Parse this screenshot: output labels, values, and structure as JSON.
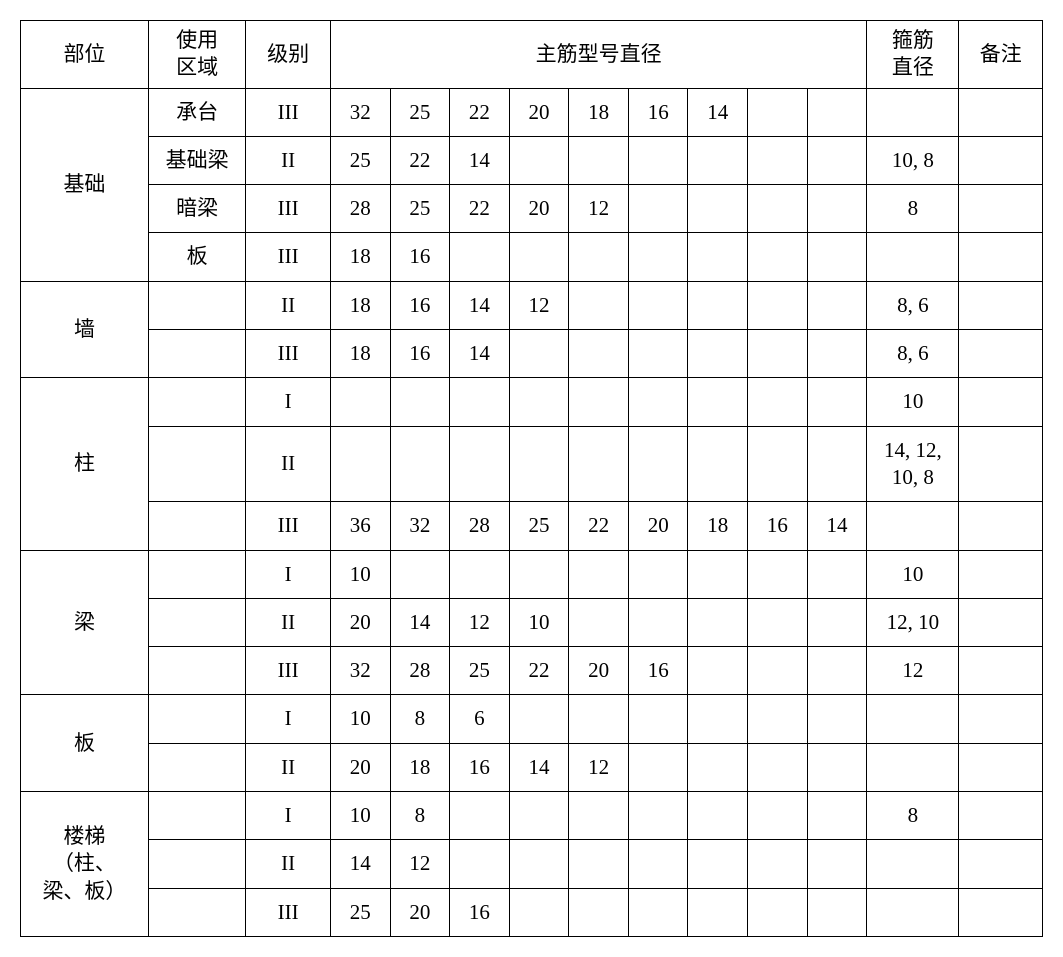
{
  "headers": {
    "part": "部位",
    "area": "使用\n区域",
    "level": "级别",
    "main_rebar": "主筋型号直径",
    "stirrup": "箍筋\n直径",
    "remark": "备注"
  },
  "groups": [
    {
      "part": "基础",
      "rows": [
        {
          "area": "承台",
          "level": "III",
          "rebars": [
            "32",
            "25",
            "22",
            "20",
            "18",
            "16",
            "14",
            "",
            ""
          ],
          "stirrup": "",
          "remark": ""
        },
        {
          "area": "基础梁",
          "level": "II",
          "rebars": [
            "25",
            "22",
            "14",
            "",
            "",
            "",
            "",
            "",
            ""
          ],
          "stirrup": "10, 8",
          "remark": ""
        },
        {
          "area": "暗梁",
          "level": "III",
          "rebars": [
            "28",
            "25",
            "22",
            "20",
            "12",
            "",
            "",
            "",
            ""
          ],
          "stirrup": "8",
          "remark": ""
        },
        {
          "area": "板",
          "level": "III",
          "rebars": [
            "18",
            "16",
            "",
            "",
            "",
            "",
            "",
            "",
            ""
          ],
          "stirrup": "",
          "remark": ""
        }
      ]
    },
    {
      "part": "墙",
      "rows": [
        {
          "area": "",
          "level": "II",
          "rebars": [
            "18",
            "16",
            "14",
            "12",
            "",
            "",
            "",
            "",
            ""
          ],
          "stirrup": "8, 6",
          "remark": ""
        },
        {
          "area": "",
          "level": "III",
          "rebars": [
            "18",
            "16",
            "14",
            "",
            "",
            "",
            "",
            "",
            ""
          ],
          "stirrup": "8, 6",
          "remark": ""
        }
      ]
    },
    {
      "part": "柱",
      "rows": [
        {
          "area": "",
          "level": "I",
          "rebars": [
            "",
            "",
            "",
            "",
            "",
            "",
            "",
            "",
            ""
          ],
          "stirrup": "10",
          "remark": ""
        },
        {
          "area": "",
          "level": "II",
          "rebars": [
            "",
            "",
            "",
            "",
            "",
            "",
            "",
            "",
            ""
          ],
          "stirrup": "14, 12,\n10, 8",
          "remark": ""
        },
        {
          "area": "",
          "level": "III",
          "rebars": [
            "36",
            "32",
            "28",
            "25",
            "22",
            "20",
            "18",
            "16",
            "14"
          ],
          "stirrup": "",
          "remark": ""
        }
      ]
    },
    {
      "part": "梁",
      "rows": [
        {
          "area": "",
          "level": "I",
          "rebars": [
            "10",
            "",
            "",
            "",
            "",
            "",
            "",
            "",
            ""
          ],
          "stirrup": "10",
          "remark": ""
        },
        {
          "area": "",
          "level": "II",
          "rebars": [
            "20",
            "14",
            "12",
            "10",
            "",
            "",
            "",
            "",
            ""
          ],
          "stirrup": "12, 10",
          "remark": ""
        },
        {
          "area": "",
          "level": "III",
          "rebars": [
            "32",
            "28",
            "25",
            "22",
            "20",
            "16",
            "",
            "",
            ""
          ],
          "stirrup": "12",
          "remark": ""
        }
      ]
    },
    {
      "part": "板",
      "rows": [
        {
          "area": "",
          "level": "I",
          "rebars": [
            "10",
            "8",
            "6",
            "",
            "",
            "",
            "",
            "",
            ""
          ],
          "stirrup": "",
          "remark": ""
        },
        {
          "area": "",
          "level": "II",
          "rebars": [
            "20",
            "18",
            "16",
            "14",
            "12",
            "",
            "",
            "",
            ""
          ],
          "stirrup": "",
          "remark": ""
        }
      ]
    },
    {
      "part": "楼梯\n（柱、\n梁、板）",
      "rows": [
        {
          "area": "",
          "level": "I",
          "rebars": [
            "10",
            "8",
            "",
            "",
            "",
            "",
            "",
            "",
            ""
          ],
          "stirrup": "8",
          "remark": ""
        },
        {
          "area": "",
          "level": "II",
          "rebars": [
            "14",
            "12",
            "",
            "",
            "",
            "",
            "",
            "",
            ""
          ],
          "stirrup": "",
          "remark": ""
        },
        {
          "area": "",
          "level": "III",
          "rebars": [
            "25",
            "20",
            "16",
            "",
            "",
            "",
            "",
            "",
            ""
          ],
          "stirrup": "",
          "remark": ""
        }
      ]
    }
  ],
  "style": {
    "type": "table",
    "background_color": "#ffffff",
    "border_color": "#000000",
    "text_color": "#000000",
    "font_size": 21,
    "font_family": "SimSun",
    "rebar_cols": 9,
    "col_widths": {
      "part": 118,
      "area": 90,
      "level": 78,
      "rebar": 55,
      "stirrup": 85,
      "remark": 77
    }
  }
}
